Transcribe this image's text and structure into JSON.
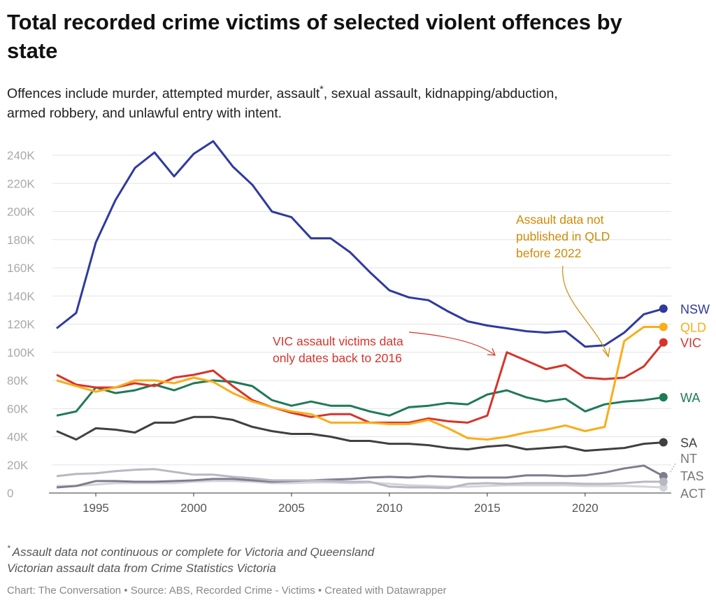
{
  "chart_data": {
    "type": "line",
    "title": [
      "Total recorded crime victims of selected violent offences by",
      "state"
    ],
    "subtitle": [
      "Offences include murder, attempted murder, assault",
      "*",
      ", sexual assault, kidnapping/abduction,",
      "armed robbery, and unlawful entry with intent."
    ],
    "x": [
      1993,
      1994,
      1995,
      1996,
      1997,
      1998,
      1999,
      2000,
      2001,
      2002,
      2003,
      2004,
      2005,
      2006,
      2007,
      2008,
      2009,
      2010,
      2011,
      2012,
      2013,
      2014,
      2015,
      2016,
      2017,
      2018,
      2019,
      2020,
      2021,
      2022,
      2023,
      2024
    ],
    "xlim": [
      1992.6,
      2024.4
    ],
    "xticks": [
      1995,
      2000,
      2005,
      2010,
      2015,
      2020
    ],
    "ylim": [
      0,
      250000
    ],
    "yticks": [
      0,
      {
        "value": 20000,
        "label": "20K"
      },
      {
        "value": 40000,
        "label": "40K"
      },
      {
        "value": 60000,
        "label": "60K"
      },
      {
        "value": 80000,
        "label": "80K"
      },
      {
        "value": 100000,
        "label": "100K"
      },
      {
        "value": 120000,
        "label": "120K"
      },
      {
        "value": 140000,
        "label": "140K"
      },
      {
        "value": 160000,
        "label": "160K"
      },
      {
        "value": 180000,
        "label": "180K"
      },
      {
        "value": 200000,
        "label": "200K"
      },
      {
        "value": 220000,
        "label": "220K"
      },
      {
        "value": 240000,
        "label": "240K"
      }
    ],
    "grid": true,
    "series": [
      {
        "name": "NSW",
        "color": "#2f3a9e",
        "values": [
          117000,
          128000,
          178000,
          208000,
          231000,
          242000,
          225000,
          241000,
          250000,
          232000,
          219000,
          200000,
          196000,
          181000,
          181000,
          171000,
          157000,
          144000,
          139000,
          137000,
          129000,
          122000,
          119000,
          117000,
          115000,
          114000,
          115000,
          104000,
          105000,
          114000,
          127000,
          131000
        ]
      },
      {
        "name": "QLD",
        "color": "#f9ad1a",
        "values": [
          80000,
          76000,
          72000,
          75000,
          80000,
          80000,
          78000,
          82000,
          79000,
          71000,
          65000,
          61000,
          58000,
          56000,
          50000,
          50000,
          50000,
          49000,
          49000,
          52000,
          46000,
          39000,
          38000,
          40000,
          43000,
          45000,
          48000,
          44000,
          47000,
          108000,
          118000,
          118000
        ]
      },
      {
        "name": "VIC",
        "color": "#d6342b",
        "values": [
          84000,
          77000,
          75000,
          75000,
          78000,
          76000,
          82000,
          84000,
          87000,
          76000,
          66000,
          61000,
          57000,
          54000,
          56000,
          56000,
          50000,
          50000,
          50000,
          53000,
          51000,
          50000,
          55000,
          100000,
          94000,
          88000,
          91000,
          82000,
          81000,
          82000,
          90000,
          107000
        ]
      },
      {
        "name": "WA",
        "color": "#1f7a55",
        "values": [
          55000,
          58000,
          75000,
          71000,
          73000,
          77000,
          73000,
          78000,
          80000,
          79000,
          76000,
          66000,
          62000,
          65000,
          62000,
          62000,
          58000,
          55000,
          61000,
          62000,
          64000,
          63000,
          70000,
          73000,
          68000,
          65000,
          67000,
          58000,
          63000,
          65000,
          66000,
          68000
        ]
      },
      {
        "name": "SA",
        "color": "#404040",
        "values": [
          44000,
          38000,
          46000,
          45000,
          43000,
          50000,
          50000,
          54000,
          54000,
          52000,
          47000,
          44000,
          42000,
          42000,
          40000,
          37000,
          37000,
          35000,
          35000,
          34000,
          32000,
          31000,
          33000,
          34000,
          31000,
          32000,
          33000,
          30000,
          31000,
          32000,
          35000,
          36000
        ]
      },
      {
        "name": "NT",
        "color": "#b8b8c2",
        "values": [
          12000,
          13500,
          14000,
          15500,
          16500,
          17000,
          15000,
          13000,
          13000,
          11500,
          10500,
          9000,
          9000,
          9000,
          8500,
          8000,
          8000,
          4500,
          4000,
          4000,
          3500,
          6500,
          7000,
          6500,
          7000,
          7000,
          7000,
          6500,
          6500,
          7000,
          8000,
          8000
        ]
      },
      {
        "name": "TAS",
        "color": "#7d7d8e",
        "values": [
          4000,
          5000,
          8500,
          8500,
          8000,
          8000,
          8500,
          9000,
          10000,
          10000,
          9000,
          8000,
          8500,
          9000,
          9500,
          10000,
          11000,
          11500,
          11000,
          12000,
          11500,
          11000,
          11000,
          11000,
          12500,
          12500,
          12000,
          12500,
          14500,
          17500,
          19500,
          12000
        ]
      },
      {
        "name": "ACT",
        "color": "#d3d3da",
        "values": [
          5000,
          5000,
          6000,
          7000,
          7000,
          7000,
          7000,
          8000,
          8500,
          8500,
          8000,
          7000,
          7000,
          7500,
          7500,
          7000,
          7500,
          6500,
          5500,
          5000,
          4500,
          4500,
          5000,
          5500,
          5500,
          5500,
          5500,
          5000,
          5000,
          5000,
          4500,
          4000
        ]
      }
    ],
    "annotations": [
      {
        "text": [
          "Assault data not",
          "published in QLD",
          "before 2022"
        ],
        "color": "#d08a08"
      },
      {
        "text": [
          "VIC assault victims data",
          "only dates back to 2016"
        ],
        "color": "#d6342b"
      }
    ],
    "notes": [
      "*",
      "Assault data not continuous or complete for Victoria and Queensland",
      "Victorian assault data from Crime Statistics Victoria"
    ],
    "source": "Chart: The Conversation • Source: ABS, Recorded Crime - Victims • Created with Datawrapper"
  }
}
